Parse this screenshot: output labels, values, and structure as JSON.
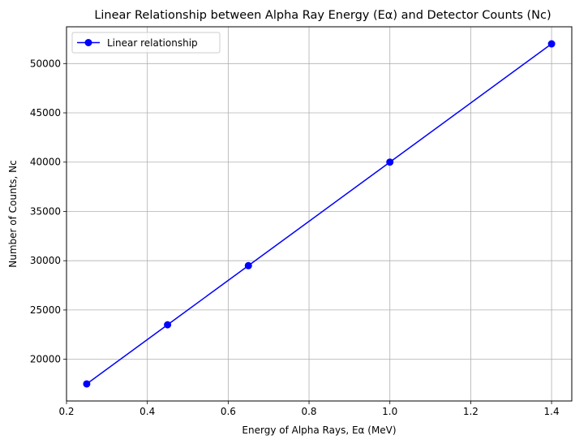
{
  "chart_data": {
    "type": "line",
    "title": "Linear Relationship between Alpha Ray Energy (Eα) and Detector Counts (Nc)",
    "xlabel": "Energy of Alpha Rays, Eα (MeV)",
    "ylabel": "Number of Counts, Nc",
    "xlim": [
      0.2,
      1.45
    ],
    "ylim": [
      15770,
      53730
    ],
    "xticks": [
      0.2,
      0.4,
      0.6,
      0.8,
      1.0,
      1.2,
      1.4
    ],
    "xtick_labels": [
      "0.2",
      "0.4",
      "0.6",
      "0.8",
      "1.0",
      "1.2",
      "1.4"
    ],
    "yticks": [
      20000,
      25000,
      30000,
      35000,
      40000,
      45000,
      50000
    ],
    "ytick_labels": [
      "20000",
      "25000",
      "30000",
      "35000",
      "40000",
      "45000",
      "50000"
    ],
    "grid": true,
    "legend_position": "upper-left",
    "series": [
      {
        "name": "Linear relationship",
        "color": "#0000ff",
        "marker": "circle",
        "x": [
          0.25,
          0.45,
          0.65,
          1.0,
          1.4
        ],
        "y": [
          17500,
          23500,
          29500,
          40000,
          52000
        ]
      }
    ]
  }
}
